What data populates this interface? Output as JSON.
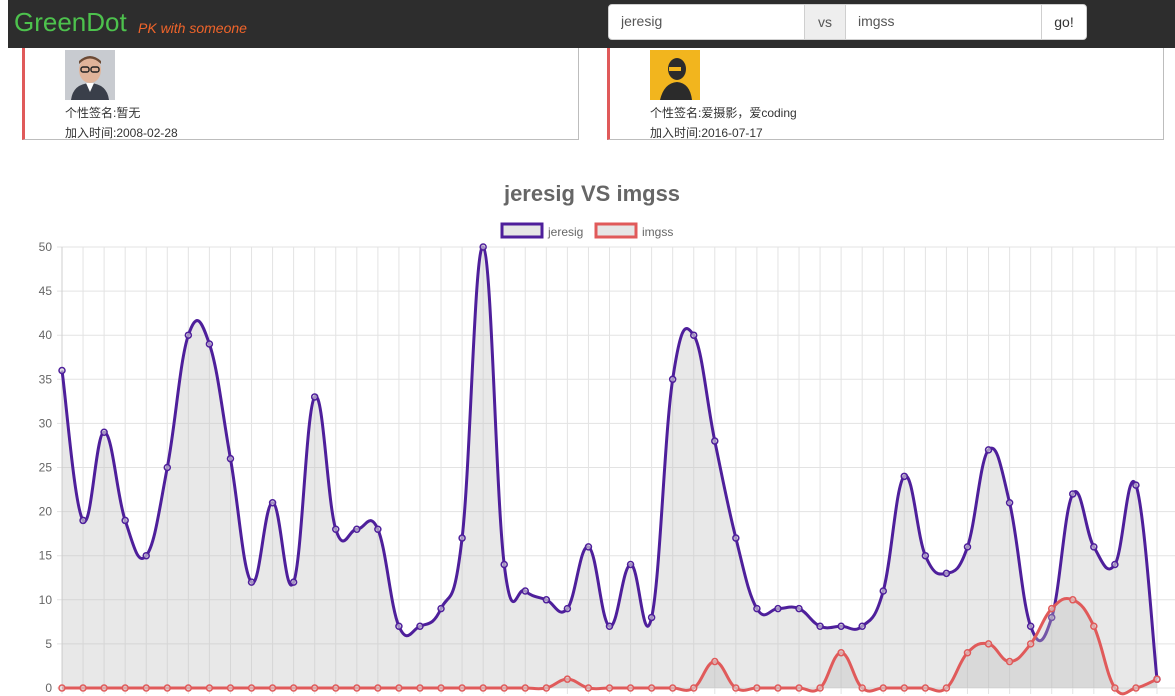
{
  "navbar": {
    "brand": "GreenDot",
    "tagline": "PK with someone",
    "search": {
      "user1": "jeresig",
      "vs_label": "vs",
      "user2": "imgss",
      "go_label": "go!"
    }
  },
  "cards": [
    {
      "signature": "个性签名:暂无",
      "joined": "加入时间:2008-02-28",
      "avatar_icon": "user-photo-avatar"
    },
    {
      "signature": "个性签名:爱摄影，爱coding",
      "joined": "加入时间:2016-07-17",
      "avatar_icon": "user-cartoon-avatar"
    }
  ],
  "chart_data": {
    "type": "line",
    "title": "jeresig VS imgss",
    "ylim": [
      0,
      50
    ],
    "y_ticks": [
      "0",
      "5",
      "10",
      "15",
      "20",
      "25",
      "30",
      "35",
      "40",
      "45",
      "50"
    ],
    "grid": true,
    "legend_position": "top",
    "series": [
      {
        "name": "jeresig",
        "color": "#4e1f9b",
        "values": [
          36,
          19,
          29,
          19,
          15,
          25,
          40,
          39,
          26,
          12,
          21,
          12,
          33,
          18,
          18,
          18,
          7,
          7,
          9,
          17,
          50,
          14,
          11,
          10,
          9,
          16,
          7,
          14,
          8,
          35,
          40,
          28,
          17,
          9,
          9,
          9,
          7,
          7,
          7,
          11,
          24,
          15,
          13,
          16,
          27,
          21,
          7,
          8,
          22,
          16,
          14,
          23,
          1
        ]
      },
      {
        "name": "imgss",
        "color": "#e05a5a",
        "values": [
          0,
          0,
          0,
          0,
          0,
          0,
          0,
          0,
          0,
          0,
          0,
          0,
          0,
          0,
          0,
          0,
          0,
          0,
          0,
          0,
          0,
          0,
          0,
          0,
          1,
          0,
          0,
          0,
          0,
          0,
          0,
          3,
          0,
          0,
          0,
          0,
          0,
          4,
          0,
          0,
          0,
          0,
          0,
          4,
          5,
          3,
          5,
          9,
          10,
          7,
          0,
          0,
          1
        ]
      }
    ]
  }
}
